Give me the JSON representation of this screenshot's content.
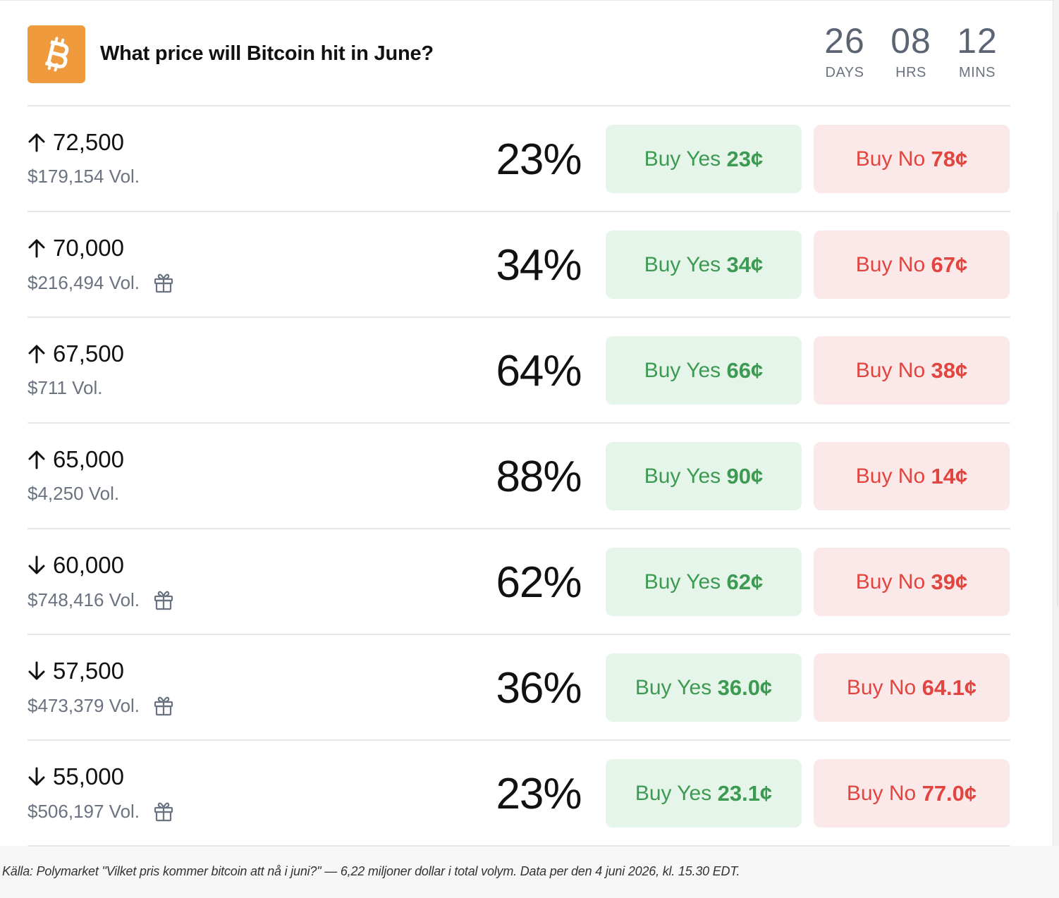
{
  "header": {
    "title": "What price will Bitcoin hit in June?",
    "logo_icon": "bitcoin-icon",
    "brand_color": "#ef9a3c",
    "timer": [
      {
        "value": "26",
        "label": "DAYS"
      },
      {
        "value": "08",
        "label": "HRS"
      },
      {
        "value": "12",
        "label": "MINS"
      }
    ]
  },
  "colors": {
    "yes_bg": "#e6f5e9",
    "yes_text": "#3d9a52",
    "no_bg": "#fbe9e9",
    "no_text": "#e2443f"
  },
  "rows": [
    {
      "direction": "up",
      "price": "72,500",
      "volume": "$179,154 Vol.",
      "gift": false,
      "chance": "23%",
      "yes_label": "Buy Yes",
      "yes_price": "23¢",
      "no_label": "Buy No",
      "no_price": "78¢"
    },
    {
      "direction": "up",
      "price": "70,000",
      "volume": "$216,494 Vol.",
      "gift": true,
      "chance": "34%",
      "yes_label": "Buy Yes",
      "yes_price": "34¢",
      "no_label": "Buy No",
      "no_price": "67¢"
    },
    {
      "direction": "up",
      "price": "67,500",
      "volume": "$711 Vol.",
      "gift": false,
      "chance": "64%",
      "yes_label": "Buy Yes",
      "yes_price": "66¢",
      "no_label": "Buy No",
      "no_price": "38¢"
    },
    {
      "direction": "up",
      "price": "65,000",
      "volume": "$4,250 Vol.",
      "gift": false,
      "chance": "88%",
      "yes_label": "Buy Yes",
      "yes_price": "90¢",
      "no_label": "Buy No",
      "no_price": "14¢"
    },
    {
      "direction": "down",
      "price": "60,000",
      "volume": "$748,416 Vol.",
      "gift": true,
      "chance": "62%",
      "yes_label": "Buy Yes",
      "yes_price": "62¢",
      "no_label": "Buy No",
      "no_price": "39¢"
    },
    {
      "direction": "down",
      "price": "57,500",
      "volume": "$473,379 Vol.",
      "gift": true,
      "chance": "36%",
      "yes_label": "Buy Yes",
      "yes_price": "36.0¢",
      "no_label": "Buy No",
      "no_price": "64.1¢"
    },
    {
      "direction": "down",
      "price": "55,000",
      "volume": "$506,197 Vol.",
      "gift": true,
      "chance": "23%",
      "yes_label": "Buy Yes",
      "yes_price": "23.1¢",
      "no_label": "Buy No",
      "no_price": "77.0¢"
    }
  ],
  "caption": "Källa: Polymarket \"Vilket pris kommer bitcoin att nå i juni?\" — 6,22 miljoner dollar i total volym. Data per den 4 juni 2026, kl. 15.30 EDT."
}
